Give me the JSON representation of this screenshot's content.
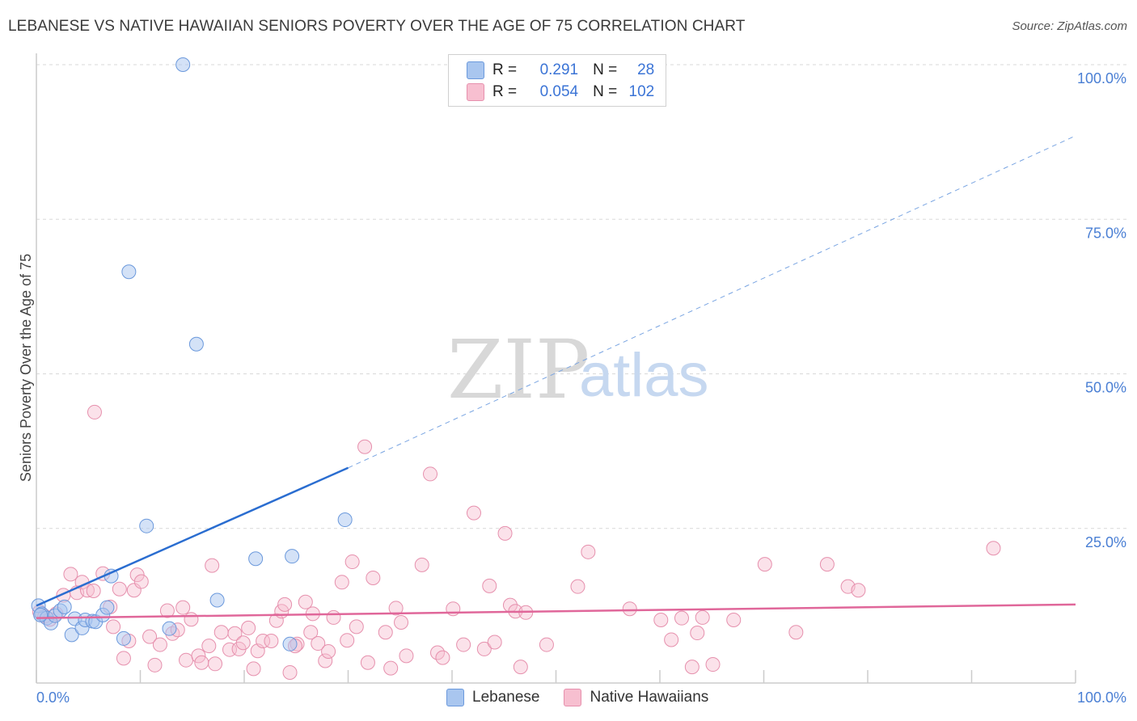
{
  "title": "LEBANESE VS NATIVE HAWAIIAN SENIORS POVERTY OVER THE AGE OF 75 CORRELATION CHART",
  "source": "Source: ZipAtlas.com",
  "watermark": {
    "zip": "ZIP",
    "atlas": "atlas"
  },
  "colors": {
    "blue_fill": "#a9c6ef",
    "blue_stroke": "#6b99dc",
    "blue_line": "#2a6dd0",
    "pink_fill": "#f7bfd0",
    "pink_stroke": "#e690ad",
    "pink_line": "#e0679a",
    "tick": "#4a7fd4",
    "grid": "#d9d9d9"
  },
  "legend": {
    "rows": [
      {
        "r_label": "R =",
        "r_value": "0.291",
        "n_label": "N =",
        "n_value": "28",
        "color": "#a9c6ef",
        "stroke": "#6b99dc"
      },
      {
        "r_label": "R =",
        "r_value": "0.054",
        "n_label": "N =",
        "n_value": "102",
        "color": "#f7bfd0",
        "stroke": "#e690ad"
      }
    ]
  },
  "bottom_legend": [
    {
      "label": "Lebanese",
      "color": "#a9c6ef",
      "stroke": "#6b99dc"
    },
    {
      "label": "Native Hawaiians",
      "color": "#f7bfd0",
      "stroke": "#e690ad"
    }
  ],
  "chart_data": {
    "type": "scatter",
    "title": "LEBANESE VS NATIVE HAWAIIAN SENIORS POVERTY OVER THE AGE OF 75 CORRELATION CHART",
    "xlabel": "",
    "ylabel": "Seniors Poverty Over the Age of 75",
    "xlim": [
      0,
      100
    ],
    "ylim": [
      0,
      100
    ],
    "x_tick_labels": [
      "0.0%",
      "100.0%"
    ],
    "y_ticks": [
      25,
      50,
      75,
      100
    ],
    "y_tick_labels": [
      "25.0%",
      "50.0%",
      "75.0%",
      "100.0%"
    ],
    "grid": true,
    "legend_placement": "top-center",
    "series": [
      {
        "name": "Lebanese",
        "r": 0.291,
        "n": 28,
        "trend": {
          "x0": 0,
          "y0": 12.5,
          "x1": 30,
          "y1": 34.8,
          "dashed_to_x": 100,
          "dashed_to_y": 88.5
        },
        "points": [
          [
            0.2,
            12.5
          ],
          [
            0.5,
            11.2
          ],
          [
            1.0,
            10.5
          ],
          [
            1.4,
            9.7
          ],
          [
            1.8,
            10.9
          ],
          [
            2.3,
            11.7
          ],
          [
            2.7,
            12.3
          ],
          [
            3.4,
            7.8
          ],
          [
            3.7,
            10.4
          ],
          [
            4.4,
            8.9
          ],
          [
            4.7,
            10.2
          ],
          [
            5.4,
            10.0
          ],
          [
            5.7,
            9.9
          ],
          [
            6.4,
            11.0
          ],
          [
            6.8,
            12.2
          ],
          [
            7.2,
            17.3
          ],
          [
            8.4,
            7.2
          ],
          [
            8.9,
            66.5
          ],
          [
            10.6,
            25.4
          ],
          [
            12.8,
            8.8
          ],
          [
            14.1,
            100.0
          ],
          [
            15.4,
            54.8
          ],
          [
            17.4,
            13.4
          ],
          [
            21.1,
            20.1
          ],
          [
            24.4,
            6.3
          ],
          [
            24.6,
            20.5
          ],
          [
            29.7,
            26.4
          ],
          [
            0.4,
            11.0
          ]
        ]
      },
      {
        "name": "Native Hawaiians",
        "r": 0.054,
        "n": 102,
        "trend": {
          "x0": 0,
          "y0": 10.5,
          "x1": 100,
          "y1": 12.7
        },
        "points": [
          [
            0.3,
            11.5
          ],
          [
            0.8,
            10.8
          ],
          [
            1.3,
            10.3
          ],
          [
            1.9,
            11.2
          ],
          [
            2.6,
            14.2
          ],
          [
            3.3,
            17.6
          ],
          [
            3.9,
            14.6
          ],
          [
            4.4,
            16.3
          ],
          [
            4.9,
            15.0
          ],
          [
            5.5,
            14.9
          ],
          [
            5.6,
            43.8
          ],
          [
            6.4,
            17.7
          ],
          [
            7.1,
            12.3
          ],
          [
            7.4,
            9.1
          ],
          [
            8.0,
            15.2
          ],
          [
            8.4,
            4.0
          ],
          [
            8.9,
            6.8
          ],
          [
            9.4,
            15.0
          ],
          [
            9.7,
            17.5
          ],
          [
            10.1,
            16.4
          ],
          [
            10.9,
            7.5
          ],
          [
            11.4,
            2.9
          ],
          [
            11.9,
            6.2
          ],
          [
            12.6,
            11.7
          ],
          [
            13.1,
            8.0
          ],
          [
            13.6,
            8.6
          ],
          [
            14.1,
            12.2
          ],
          [
            14.4,
            3.7
          ],
          [
            14.9,
            10.3
          ],
          [
            15.6,
            4.4
          ],
          [
            15.9,
            3.3
          ],
          [
            16.6,
            6.0
          ],
          [
            16.9,
            19.0
          ],
          [
            17.2,
            3.1
          ],
          [
            17.8,
            8.2
          ],
          [
            18.6,
            5.4
          ],
          [
            19.1,
            8.0
          ],
          [
            19.5,
            5.5
          ],
          [
            19.9,
            6.5
          ],
          [
            20.4,
            8.9
          ],
          [
            20.9,
            2.3
          ],
          [
            21.3,
            5.2
          ],
          [
            21.8,
            6.8
          ],
          [
            22.6,
            6.8
          ],
          [
            23.1,
            10.1
          ],
          [
            23.6,
            11.6
          ],
          [
            23.9,
            12.7
          ],
          [
            24.4,
            1.7
          ],
          [
            25.1,
            6.3
          ],
          [
            25.9,
            13.1
          ],
          [
            26.4,
            8.2
          ],
          [
            26.6,
            11.2
          ],
          [
            27.1,
            6.4
          ],
          [
            27.8,
            3.6
          ],
          [
            28.1,
            5.1
          ],
          [
            28.6,
            10.6
          ],
          [
            29.4,
            16.3
          ],
          [
            29.9,
            6.9
          ],
          [
            30.4,
            19.6
          ],
          [
            30.8,
            9.1
          ],
          [
            31.6,
            38.2
          ],
          [
            31.9,
            3.3
          ],
          [
            32.4,
            17.0
          ],
          [
            33.6,
            8.2
          ],
          [
            34.1,
            2.4
          ],
          [
            34.6,
            12.1
          ],
          [
            35.1,
            9.8
          ],
          [
            35.6,
            4.4
          ],
          [
            37.1,
            19.1
          ],
          [
            37.9,
            33.8
          ],
          [
            38.6,
            4.9
          ],
          [
            39.1,
            4.1
          ],
          [
            40.1,
            12.0
          ],
          [
            41.1,
            6.2
          ],
          [
            42.1,
            27.5
          ],
          [
            43.1,
            5.5
          ],
          [
            43.6,
            15.7
          ],
          [
            44.1,
            6.6
          ],
          [
            45.1,
            24.2
          ],
          [
            45.6,
            12.6
          ],
          [
            46.1,
            11.6
          ],
          [
            46.6,
            2.6
          ],
          [
            47.1,
            11.4
          ],
          [
            49.1,
            6.2
          ],
          [
            52.1,
            15.6
          ],
          [
            53.1,
            21.2
          ],
          [
            57.1,
            12.0
          ],
          [
            60.1,
            10.2
          ],
          [
            61.1,
            7.0
          ],
          [
            62.1,
            10.5
          ],
          [
            63.1,
            2.6
          ],
          [
            64.1,
            10.6
          ],
          [
            65.1,
            3.0
          ],
          [
            67.1,
            10.2
          ],
          [
            70.1,
            19.2
          ],
          [
            73.1,
            8.2
          ],
          [
            76.1,
            19.2
          ],
          [
            78.1,
            15.6
          ],
          [
            79.1,
            15.0
          ],
          [
            92.1,
            21.8
          ],
          [
            63.6,
            8.1
          ],
          [
            24.9,
            6.0
          ]
        ]
      }
    ]
  }
}
